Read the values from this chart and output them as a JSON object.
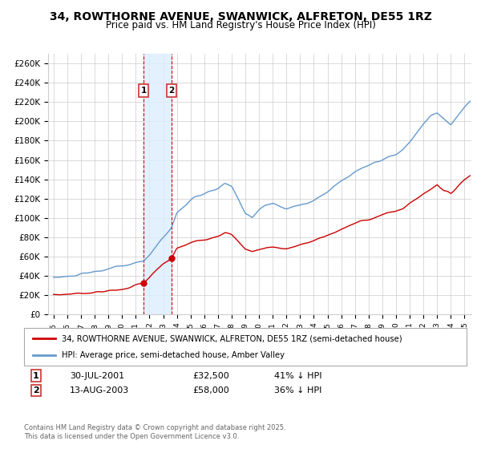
{
  "title": "34, ROWTHORNE AVENUE, SWANWICK, ALFRETON, DE55 1RZ",
  "subtitle": "Price paid vs. HM Land Registry's House Price Index (HPI)",
  "ylabel_ticks": [
    "£0",
    "£20K",
    "£40K",
    "£60K",
    "£80K",
    "£100K",
    "£120K",
    "£140K",
    "£160K",
    "£180K",
    "£200K",
    "£220K",
    "£240K",
    "£260K"
  ],
  "ylim": [
    0,
    270000
  ],
  "yticks": [
    0,
    20000,
    40000,
    60000,
    80000,
    100000,
    120000,
    140000,
    160000,
    180000,
    200000,
    220000,
    240000,
    260000
  ],
  "xlim_start": 1994.6,
  "xlim_end": 2025.5,
  "legend_line1": "34, ROWTHORNE AVENUE, SWANWICK, ALFRETON, DE55 1RZ (semi-detached house)",
  "legend_line2": "HPI: Average price, semi-detached house, Amber Valley",
  "transaction1_date": "30-JUL-2001",
  "transaction1_price": "£32,500",
  "transaction1_hpi": "41% ↓ HPI",
  "transaction1_year": 2001.58,
  "transaction1_value": 32500,
  "transaction2_date": "13-AUG-2003",
  "transaction2_price": "£58,000",
  "transaction2_hpi": "36% ↓ HPI",
  "transaction2_year": 2003.62,
  "transaction2_value": 58000,
  "red_line_color": "#cc0000",
  "blue_line_color": "#6699cc",
  "shade_color": "#ddeeff",
  "vline_color": "#cc0000",
  "grid_color": "#cccccc",
  "footnote": "Contains HM Land Registry data © Crown copyright and database right 2025.\nThis data is licensed under the Open Government Licence v3.0.",
  "background_color": "#ffffff"
}
